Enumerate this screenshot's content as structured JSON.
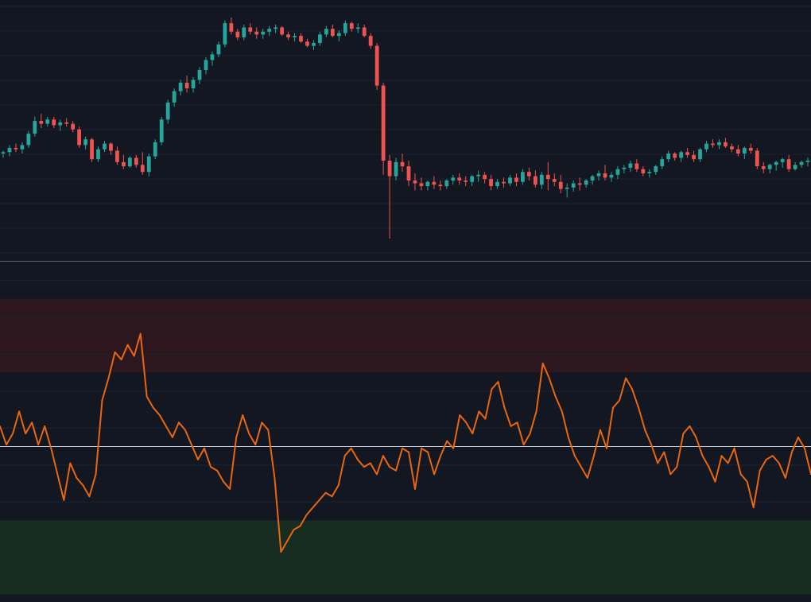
{
  "theme": {
    "background": "#131722",
    "grid": "#1e2230",
    "divider": "#5d606b",
    "candle_up": "#26a69a",
    "candle_down": "#ef5350",
    "oscillator_line": "#e8670e",
    "midline": "#c9ccd4",
    "overbought_fill": "#2d171f",
    "oversold_fill": "#172d22"
  },
  "chart_data": [
    {
      "type": "candlestick",
      "grid": true,
      "candles": [
        [
          0,
          0.0,
          0.2,
          -0.3,
          0.1
        ],
        [
          1,
          0.1,
          0.6,
          -0.2,
          0.4
        ],
        [
          2,
          0.4,
          0.7,
          0.1,
          0.3
        ],
        [
          3,
          0.3,
          0.8,
          0.0,
          0.6
        ],
        [
          4,
          0.6,
          1.6,
          0.4,
          1.4
        ],
        [
          5,
          1.4,
          2.6,
          1.2,
          2.3
        ],
        [
          6,
          2.3,
          2.8,
          1.8,
          2.1
        ],
        [
          7,
          2.1,
          2.6,
          1.9,
          2.4
        ],
        [
          8,
          2.4,
          2.6,
          1.8,
          2.0
        ],
        [
          9,
          2.0,
          2.4,
          1.6,
          2.2
        ],
        [
          10,
          2.2,
          2.5,
          1.9,
          2.1
        ],
        [
          11,
          2.1,
          2.3,
          1.5,
          1.7
        ],
        [
          12,
          1.7,
          1.9,
          0.4,
          0.6
        ],
        [
          13,
          0.6,
          1.2,
          0.3,
          1.0
        ],
        [
          14,
          1.0,
          1.1,
          -0.6,
          -0.4
        ],
        [
          15,
          -0.4,
          0.5,
          -0.6,
          0.3
        ],
        [
          16,
          0.3,
          0.9,
          0.1,
          0.7
        ],
        [
          17,
          0.7,
          0.8,
          -0.1,
          0.2
        ],
        [
          18,
          0.2,
          0.5,
          -0.8,
          -0.6
        ],
        [
          19,
          -0.6,
          -0.1,
          -1.1,
          -0.9
        ],
        [
          20,
          -0.9,
          -0.2,
          -1.0,
          -0.3
        ],
        [
          21,
          -0.3,
          -0.1,
          -1.0,
          -0.8
        ],
        [
          22,
          -0.8,
          0.1,
          -1.5,
          -1.3
        ],
        [
          23,
          -1.3,
          0.0,
          -1.6,
          -0.2
        ],
        [
          24,
          -0.2,
          1.0,
          -0.4,
          0.8
        ],
        [
          25,
          0.8,
          2.6,
          0.6,
          2.4
        ],
        [
          26,
          2.4,
          3.8,
          2.1,
          3.6
        ],
        [
          27,
          3.6,
          4.6,
          3.3,
          4.4
        ],
        [
          28,
          4.4,
          5.2,
          4.1,
          5.0
        ],
        [
          29,
          5.0,
          5.5,
          4.3,
          4.6
        ],
        [
          30,
          4.6,
          5.4,
          4.3,
          5.2
        ],
        [
          31,
          5.2,
          6.1,
          4.9,
          5.9
        ],
        [
          32,
          5.9,
          6.8,
          5.6,
          6.6
        ],
        [
          33,
          6.6,
          7.2,
          6.2,
          7.0
        ],
        [
          34,
          7.0,
          7.9,
          6.8,
          7.7
        ],
        [
          35,
          7.7,
          9.4,
          7.5,
          9.2
        ],
        [
          36,
          9.2,
          9.6,
          8.4,
          8.6
        ],
        [
          37,
          8.6,
          8.8,
          8.0,
          8.2
        ],
        [
          38,
          8.2,
          9.1,
          8.0,
          8.9
        ],
        [
          39,
          8.9,
          9.2,
          8.4,
          8.6
        ],
        [
          40,
          8.6,
          8.9,
          8.1,
          8.4
        ],
        [
          41,
          8.4,
          8.8,
          8.1,
          8.6
        ],
        [
          42,
          8.6,
          9.0,
          8.3,
          8.8
        ],
        [
          43,
          8.8,
          9.1,
          8.5,
          8.9
        ],
        [
          44,
          8.9,
          9.0,
          8.3,
          8.4
        ],
        [
          45,
          8.4,
          8.6,
          8.0,
          8.2
        ],
        [
          46,
          8.2,
          8.5,
          7.9,
          8.3
        ],
        [
          47,
          8.3,
          8.5,
          7.8,
          7.9
        ],
        [
          48,
          7.9,
          8.1,
          7.5,
          7.6
        ],
        [
          49,
          7.6,
          8.0,
          7.3,
          7.8
        ],
        [
          50,
          7.8,
          8.6,
          7.6,
          8.4
        ],
        [
          51,
          8.4,
          9.0,
          8.2,
          8.8
        ],
        [
          52,
          8.8,
          9.1,
          8.2,
          8.3
        ],
        [
          53,
          8.3,
          8.7,
          7.9,
          8.5
        ],
        [
          54,
          8.5,
          9.4,
          8.3,
          9.2
        ],
        [
          55,
          9.2,
          9.3,
          8.6,
          8.8
        ],
        [
          56,
          8.8,
          9.2,
          8.5,
          8.9
        ],
        [
          57,
          8.9,
          9.1,
          8.2,
          8.3
        ],
        [
          58,
          8.3,
          8.5,
          7.4,
          7.6
        ],
        [
          59,
          7.6,
          7.8,
          4.5,
          4.8
        ],
        [
          60,
          4.8,
          5.0,
          -1.5,
          -0.5
        ],
        [
          61,
          -0.5,
          -0.1,
          -6.0,
          -1.6
        ],
        [
          62,
          -1.6,
          -0.3,
          -1.9,
          -0.6
        ],
        [
          63,
          -0.6,
          0.0,
          -1.3,
          -0.9
        ],
        [
          64,
          -0.9,
          -0.5,
          -2.3,
          -1.9
        ],
        [
          65,
          -1.9,
          -1.4,
          -2.6,
          -2.1
        ],
        [
          66,
          -2.1,
          -1.7,
          -2.6,
          -2.3
        ],
        [
          67,
          -2.3,
          -1.9,
          -2.6,
          -2.0
        ],
        [
          68,
          -2.0,
          -1.6,
          -2.5,
          -2.2
        ],
        [
          69,
          -2.2,
          -1.9,
          -2.6,
          -2.3
        ],
        [
          70,
          -2.3,
          -1.8,
          -2.5,
          -1.9
        ],
        [
          71,
          -1.9,
          -1.5,
          -2.2,
          -1.7
        ],
        [
          72,
          -1.7,
          -1.4,
          -2.2,
          -1.9
        ],
        [
          73,
          -1.9,
          -1.6,
          -2.3,
          -2.0
        ],
        [
          74,
          -2.0,
          -1.5,
          -2.3,
          -1.6
        ],
        [
          75,
          -1.6,
          -1.2,
          -2.0,
          -1.5
        ],
        [
          76,
          -1.5,
          -1.3,
          -2.1,
          -1.8
        ],
        [
          77,
          -1.8,
          -1.5,
          -2.6,
          -2.3
        ],
        [
          78,
          -2.3,
          -1.8,
          -2.5,
          -2.0
        ],
        [
          79,
          -2.0,
          -1.7,
          -2.4,
          -2.1
        ],
        [
          80,
          -2.1,
          -1.5,
          -2.3,
          -1.7
        ],
        [
          81,
          -1.7,
          -1.4,
          -2.3,
          -2.0
        ],
        [
          82,
          -2.0,
          -1.1,
          -2.2,
          -1.3
        ],
        [
          83,
          -1.3,
          -1.0,
          -1.9,
          -1.6
        ],
        [
          84,
          -1.6,
          -1.2,
          -2.4,
          -2.2
        ],
        [
          85,
          -2.2,
          -1.3,
          -2.5,
          -1.5
        ],
        [
          86,
          -1.5,
          -0.6,
          -2.6,
          -1.8
        ],
        [
          87,
          -1.8,
          -1.4,
          -2.3,
          -2.0
        ],
        [
          88,
          -2.0,
          -1.5,
          -2.8,
          -2.5
        ],
        [
          89,
          -2.5,
          -2.1,
          -3.1,
          -2.4
        ],
        [
          90,
          -2.4,
          -1.9,
          -2.7,
          -2.1
        ],
        [
          91,
          -2.1,
          -1.7,
          -2.6,
          -2.2
        ],
        [
          92,
          -2.2,
          -1.8,
          -2.4,
          -1.9
        ],
        [
          93,
          -1.9,
          -1.5,
          -2.2,
          -1.6
        ],
        [
          94,
          -1.6,
          -1.2,
          -1.9,
          -1.4
        ],
        [
          95,
          -1.4,
          -0.8,
          -1.9,
          -1.7
        ],
        [
          96,
          -1.7,
          -1.3,
          -2.0,
          -1.5
        ],
        [
          97,
          -1.5,
          -0.9,
          -1.8,
          -1.1
        ],
        [
          98,
          -1.1,
          -0.8,
          -1.4,
          -1.0
        ],
        [
          99,
          -1.0,
          -0.5,
          -1.3,
          -0.7
        ],
        [
          100,
          -0.7,
          -0.4,
          -1.3,
          -1.1
        ],
        [
          101,
          -1.1,
          -0.9,
          -1.6,
          -1.4
        ],
        [
          102,
          -1.4,
          -1.1,
          -1.7,
          -1.3
        ],
        [
          103,
          -1.3,
          -0.8,
          -1.5,
          -0.9
        ],
        [
          104,
          -0.9,
          -0.2,
          -1.1,
          -0.4
        ],
        [
          105,
          -0.4,
          0.2,
          -0.6,
          0.0
        ],
        [
          106,
          0.0,
          0.1,
          -0.5,
          -0.3
        ],
        [
          107,
          -0.3,
          0.2,
          -0.6,
          0.1
        ],
        [
          108,
          0.1,
          0.4,
          -0.3,
          -0.1
        ],
        [
          109,
          -0.1,
          0.2,
          -0.6,
          -0.4
        ],
        [
          110,
          -0.4,
          0.4,
          -0.6,
          0.3
        ],
        [
          111,
          0.3,
          0.9,
          0.1,
          0.7
        ],
        [
          112,
          0.7,
          1.0,
          0.4,
          0.6
        ],
        [
          113,
          0.6,
          1.0,
          0.3,
          0.8
        ],
        [
          114,
          0.8,
          1.1,
          0.4,
          0.5
        ],
        [
          115,
          0.5,
          0.7,
          0.1,
          0.3
        ],
        [
          116,
          0.3,
          0.6,
          -0.2,
          0.0
        ],
        [
          117,
          0.0,
          0.5,
          -0.4,
          0.4
        ],
        [
          118,
          0.4,
          0.7,
          0.0,
          0.2
        ],
        [
          119,
          0.2,
          0.4,
          -1.1,
          -0.9
        ],
        [
          120,
          -0.9,
          -0.6,
          -1.4,
          -1.1
        ],
        [
          121,
          -1.1,
          -0.7,
          -1.4,
          -0.8
        ],
        [
          122,
          -0.8,
          -0.5,
          -1.2,
          -0.6
        ],
        [
          123,
          -0.6,
          -0.3,
          -1.0,
          -0.4
        ],
        [
          124,
          -0.4,
          -0.1,
          -1.3,
          -1.1
        ],
        [
          125,
          -1.1,
          -0.6,
          -1.2,
          -0.8
        ],
        [
          126,
          -0.8,
          -0.5,
          -1.0,
          -0.6
        ],
        [
          127,
          -0.6,
          -0.3,
          -0.9,
          -0.5
        ]
      ]
    },
    {
      "type": "line",
      "grid": true,
      "overbought_band": [
        70,
        90
      ],
      "oversold_band": [
        10,
        30
      ],
      "midline": 50,
      "x": [
        0,
        1,
        2,
        3,
        4,
        5,
        6,
        7,
        8,
        9,
        10,
        11,
        12,
        13,
        14,
        15,
        16,
        17,
        18,
        19,
        20,
        21,
        22,
        23,
        24,
        25,
        26,
        27,
        28,
        29,
        30,
        31,
        32,
        33,
        34,
        35,
        36,
        37,
        38,
        39,
        40,
        41,
        42,
        43,
        44,
        45,
        46,
        47,
        48,
        49,
        50,
        51,
        52,
        53,
        54,
        55,
        56,
        57,
        58,
        59,
        60,
        61,
        62,
        63,
        64,
        65,
        66,
        67,
        68,
        69,
        70,
        71,
        72,
        73,
        74,
        75,
        76,
        77,
        78,
        79,
        80,
        81,
        82,
        83,
        84,
        85,
        86,
        87,
        88,
        89,
        90,
        91,
        92,
        93,
        94,
        95,
        96,
        97,
        98,
        99,
        100,
        101,
        102,
        103,
        104,
        105,
        106,
        107,
        108,
        109,
        110,
        111,
        112,
        113,
        114,
        115,
        116,
        117,
        118,
        119,
        120,
        121,
        122,
        123,
        124,
        125,
        126,
        127
      ],
      "values": [
        55.5,
        50.5,
        53.5,
        59.5,
        53.5,
        56.5,
        50.5,
        55.5,
        49.5,
        42.5,
        35.5,
        45.5,
        41.5,
        39.5,
        36.5,
        42.5,
        62.5,
        68.5,
        75.5,
        73.5,
        77.5,
        74.5,
        80.5,
        63.5,
        60.5,
        58.5,
        55.5,
        52.5,
        56.5,
        54.5,
        50.5,
        46.5,
        49.5,
        44.5,
        43.5,
        40.5,
        38.5,
        52.5,
        58.5,
        53.5,
        50.5,
        56.5,
        54.5,
        41.5,
        21.5,
        24.5,
        27.5,
        28.5,
        31.5,
        33.5,
        35.5,
        37.5,
        36.5,
        39.5,
        47.5,
        49.5,
        46.5,
        44.5,
        45.5,
        42.5,
        47.5,
        44.5,
        43.5,
        49.5,
        48.5,
        38.5,
        49.5,
        48.5,
        42.5,
        47.5,
        51.5,
        49.5,
        58.5,
        56.5,
        53.5,
        59.5,
        57.5,
        65.5,
        67.5,
        60.5,
        55.5,
        56.5,
        50.5,
        53.5,
        59.5,
        72.5,
        68.5,
        63.5,
        59.5,
        52.5,
        47.5,
        44.5,
        41.5,
        47.5,
        54.5,
        49.5,
        60.5,
        62.5,
        68.5,
        65.5,
        60.5,
        54.5,
        50.5,
        45.5,
        48.5,
        42.5,
        44.5,
        53.5,
        55.5,
        52.5,
        47.5,
        44.5,
        40.5,
        47.5,
        45.5,
        49.5,
        42.5,
        40.5,
        33.5,
        43.5,
        46.5,
        47.5,
        45.5,
        41.5,
        48.5,
        52.5,
        49.5,
        42.5
      ]
    }
  ]
}
